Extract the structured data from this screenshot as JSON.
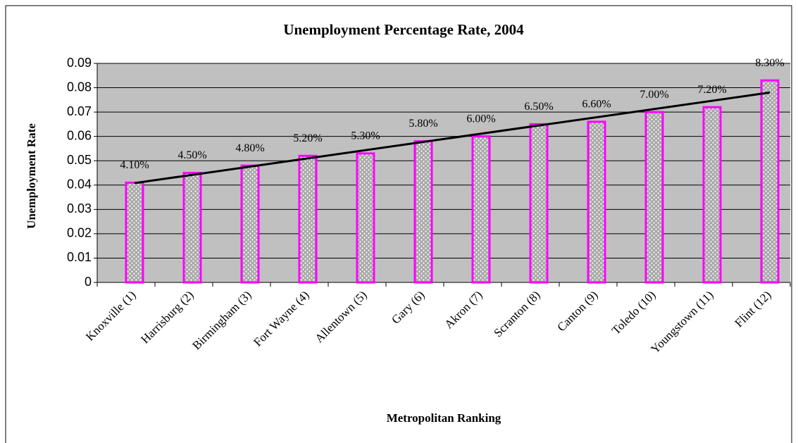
{
  "chart_data": {
    "type": "bar",
    "title": "Unemployment Percentage Rate, 2004",
    "x_label": "Metropolitan Ranking",
    "y_label": "Unemployment Rate",
    "categories": [
      "Knoxville (1)",
      "Harrisburg (2)",
      "Birmingham (3)",
      "Fort Wayne (4)",
      "Allentown (5)",
      "Gary (6)",
      "Akron (7)",
      "Scranton (8)",
      "Canton (9)",
      "Toledo (10)",
      "Youngstown (11)",
      "Flint (12)"
    ],
    "values": [
      0.041,
      0.045,
      0.048,
      0.052,
      0.053,
      0.058,
      0.06,
      0.065,
      0.066,
      0.07,
      0.072,
      0.083
    ],
    "value_labels": [
      "4.10%",
      "4.50%",
      "4.80%",
      "5.20%",
      "5.30%",
      "5.80%",
      "6.00%",
      "6.50%",
      "6.60%",
      "7.00%",
      "7.20%",
      "8.30%"
    ],
    "color": "#ff00ff",
    "plot_background": "#c0c0c0",
    "ylim": [
      0,
      0.09
    ],
    "yticks": [
      0,
      0.01,
      0.02,
      0.03,
      0.04,
      0.05,
      0.06,
      0.07,
      0.08,
      0.09
    ],
    "grid": true,
    "trendline": true
  }
}
